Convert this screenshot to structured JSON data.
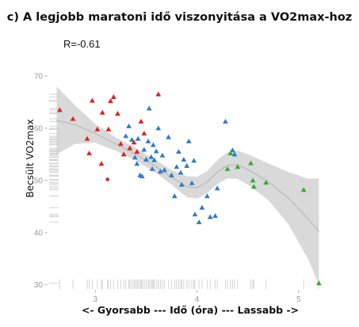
{
  "chart_data": {
    "type": "scatter",
    "title": "c) A legjobb maratoni idő viszonyitása a VO2max-hoz",
    "annotation": "R=-0.61",
    "xlabel": "<- Gyorsabb --- Idő (óra) --- Lassabb ->",
    "ylabel": "Becsült  VO2max",
    "xlim": [
      2.53,
      5.22
    ],
    "ylim": [
      29.5,
      73.5
    ],
    "xticks": [
      3,
      4,
      5
    ],
    "yticks": [
      30,
      40,
      50,
      60,
      70
    ],
    "grid": false,
    "rug": true,
    "smooth": {
      "color": "#bbbbbb",
      "band_color": "#cccccc",
      "x": [
        2.62,
        2.8,
        3.0,
        3.2,
        3.4,
        3.6,
        3.75,
        3.9,
        4.0,
        4.1,
        4.2,
        4.3,
        4.4,
        4.5,
        4.7,
        4.9,
        5.1,
        5.2
      ],
      "y": [
        61.5,
        60.7,
        59.0,
        57.0,
        55.0,
        52.6,
        50.6,
        48.8,
        48.6,
        49.7,
        51.6,
        52.9,
        53.0,
        52.1,
        49.8,
        46.6,
        42.5,
        40.2
      ],
      "lower": [
        55.0,
        57.0,
        57.2,
        55.7,
        53.8,
        51.4,
        49.2,
        46.8,
        46.5,
        47.6,
        49.3,
        50.4,
        50.3,
        49.2,
        46.3,
        41.6,
        34.7,
        30.0
      ],
      "upper": [
        68.0,
        64.4,
        60.8,
        58.3,
        56.2,
        53.8,
        52.0,
        50.8,
        50.7,
        51.8,
        53.9,
        55.4,
        55.7,
        55.0,
        53.3,
        51.6,
        50.3,
        50.4
      ]
    },
    "series": [
      {
        "color": "#dd2222",
        "points": [
          {
            "x": 2.65,
            "y": 63.5,
            "m": "t"
          },
          {
            "x": 2.78,
            "y": 61.8,
            "m": "t"
          },
          {
            "x": 2.92,
            "y": 58.0,
            "m": "t"
          },
          {
            "x": 2.94,
            "y": 55.2,
            "m": "t"
          },
          {
            "x": 2.97,
            "y": 65.3,
            "m": "t"
          },
          {
            "x": 3.02,
            "y": 59.8,
            "m": "t"
          },
          {
            "x": 3.06,
            "y": 53.2,
            "m": "t"
          },
          {
            "x": 3.07,
            "y": 63.0,
            "m": "t"
          },
          {
            "x": 3.13,
            "y": 59.8,
            "m": "t"
          },
          {
            "x": 3.15,
            "y": 65.2,
            "m": "t"
          },
          {
            "x": 3.18,
            "y": 66.0,
            "m": "t"
          },
          {
            "x": 3.22,
            "y": 62.8,
            "m": "t"
          },
          {
            "x": 3.25,
            "y": 57.0,
            "m": "t"
          },
          {
            "x": 3.28,
            "y": 55.0,
            "m": "t"
          },
          {
            "x": 3.34,
            "y": 56.2,
            "m": "t"
          },
          {
            "x": 3.38,
            "y": 57.3,
            "m": "t"
          },
          {
            "x": 3.41,
            "y": 55.5,
            "m": "t"
          },
          {
            "x": 3.45,
            "y": 61.3,
            "m": "t"
          },
          {
            "x": 3.48,
            "y": 59.0,
            "m": "t"
          },
          {
            "x": 3.62,
            "y": 66.5,
            "m": "t"
          },
          {
            "x": 3.12,
            "y": 50.2,
            "m": "c"
          }
        ]
      },
      {
        "color": "#2f7cc7",
        "points": [
          {
            "x": 3.3,
            "y": 58.5,
            "m": "t"
          },
          {
            "x": 3.33,
            "y": 60.4,
            "m": "t"
          },
          {
            "x": 3.36,
            "y": 57.8,
            "m": "t"
          },
          {
            "x": 3.39,
            "y": 54.4,
            "m": "t"
          },
          {
            "x": 3.41,
            "y": 53.2,
            "m": "t"
          },
          {
            "x": 3.42,
            "y": 58.0,
            "m": "t"
          },
          {
            "x": 3.44,
            "y": 51.0,
            "m": "t"
          },
          {
            "x": 3.46,
            "y": 50.8,
            "m": "t"
          },
          {
            "x": 3.48,
            "y": 55.9,
            "m": "t"
          },
          {
            "x": 3.5,
            "y": 54.0,
            "m": "t"
          },
          {
            "x": 3.52,
            "y": 57.5,
            "m": "t"
          },
          {
            "x": 3.53,
            "y": 63.8,
            "m": "t"
          },
          {
            "x": 3.55,
            "y": 54.5,
            "m": "t"
          },
          {
            "x": 3.56,
            "y": 52.2,
            "m": "t"
          },
          {
            "x": 3.57,
            "y": 56.8,
            "m": "t"
          },
          {
            "x": 3.58,
            "y": 53.9,
            "m": "t"
          },
          {
            "x": 3.6,
            "y": 55.6,
            "m": "t"
          },
          {
            "x": 3.62,
            "y": 60.0,
            "m": "t"
          },
          {
            "x": 3.64,
            "y": 51.7,
            "m": "t"
          },
          {
            "x": 3.66,
            "y": 54.8,
            "m": "t"
          },
          {
            "x": 3.68,
            "y": 52.0,
            "m": "t"
          },
          {
            "x": 3.72,
            "y": 58.3,
            "m": "t"
          },
          {
            "x": 3.75,
            "y": 51.0,
            "m": "t"
          },
          {
            "x": 3.78,
            "y": 47.0,
            "m": "t"
          },
          {
            "x": 3.8,
            "y": 52.6,
            "m": "t"
          },
          {
            "x": 3.82,
            "y": 55.5,
            "m": "t"
          },
          {
            "x": 3.84,
            "y": 51.5,
            "m": "t"
          },
          {
            "x": 3.85,
            "y": 49.2,
            "m": "t"
          },
          {
            "x": 3.87,
            "y": 54.0,
            "m": "t"
          },
          {
            "x": 3.9,
            "y": 52.8,
            "m": "t"
          },
          {
            "x": 3.92,
            "y": 57.5,
            "m": "t"
          },
          {
            "x": 3.95,
            "y": 49.5,
            "m": "t"
          },
          {
            "x": 3.97,
            "y": 53.8,
            "m": "t"
          },
          {
            "x": 3.98,
            "y": 43.5,
            "m": "t"
          },
          {
            "x": 4.02,
            "y": 42.0,
            "m": "t"
          },
          {
            "x": 4.05,
            "y": 44.8,
            "m": "t"
          },
          {
            "x": 4.1,
            "y": 47.0,
            "m": "t"
          },
          {
            "x": 4.13,
            "y": 43.0,
            "m": "t"
          },
          {
            "x": 4.18,
            "y": 43.2,
            "m": "t"
          },
          {
            "x": 4.2,
            "y": 48.5,
            "m": "t"
          },
          {
            "x": 4.28,
            "y": 61.3,
            "m": "t"
          },
          {
            "x": 4.35,
            "y": 55.8,
            "m": "t"
          },
          {
            "x": 4.37,
            "y": 55.0,
            "m": "t"
          }
        ]
      },
      {
        "color": "#33aa33",
        "points": [
          {
            "x": 4.3,
            "y": 52.2,
            "m": "t"
          },
          {
            "x": 4.33,
            "y": 55.2,
            "m": "t"
          },
          {
            "x": 4.4,
            "y": 52.6,
            "m": "t"
          },
          {
            "x": 4.53,
            "y": 53.3,
            "m": "t"
          },
          {
            "x": 4.55,
            "y": 50.0,
            "m": "t"
          },
          {
            "x": 4.56,
            "y": 48.8,
            "m": "t"
          },
          {
            "x": 4.68,
            "y": 49.6,
            "m": "t"
          },
          {
            "x": 5.05,
            "y": 48.2,
            "m": "t"
          },
          {
            "x": 5.2,
            "y": 30.3,
            "m": "t"
          }
        ]
      }
    ]
  }
}
